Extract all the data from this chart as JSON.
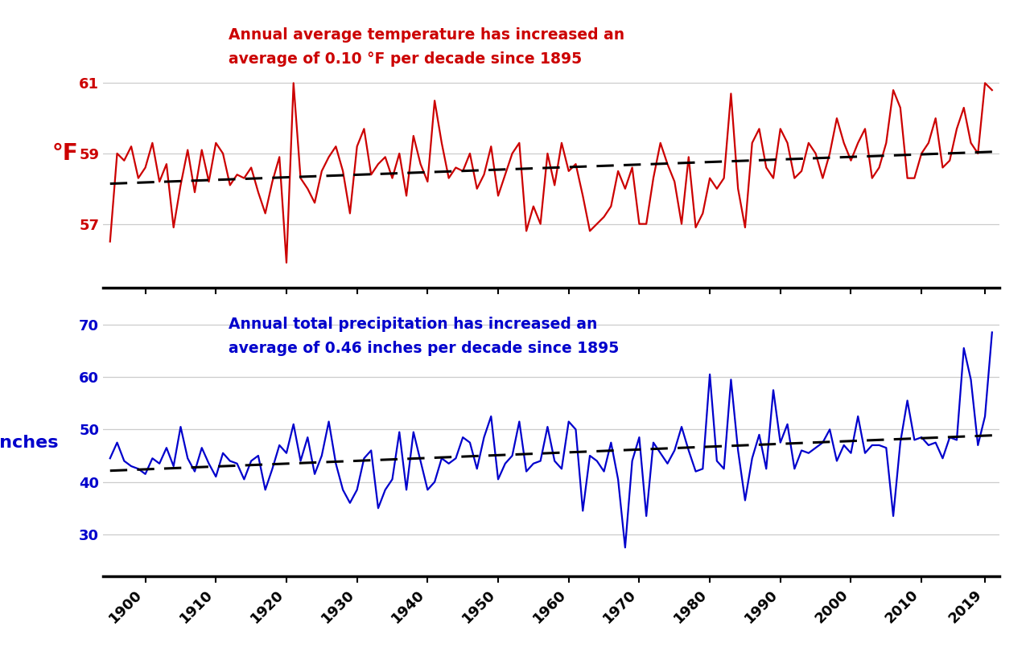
{
  "years": [
    1895,
    1896,
    1897,
    1898,
    1899,
    1900,
    1901,
    1902,
    1903,
    1904,
    1905,
    1906,
    1907,
    1908,
    1909,
    1910,
    1911,
    1912,
    1913,
    1914,
    1915,
    1916,
    1917,
    1918,
    1919,
    1920,
    1921,
    1922,
    1923,
    1924,
    1925,
    1926,
    1927,
    1928,
    1929,
    1930,
    1931,
    1932,
    1933,
    1934,
    1935,
    1936,
    1937,
    1938,
    1939,
    1940,
    1941,
    1942,
    1943,
    1944,
    1945,
    1946,
    1947,
    1948,
    1949,
    1950,
    1951,
    1952,
    1953,
    1954,
    1955,
    1956,
    1957,
    1958,
    1959,
    1960,
    1961,
    1962,
    1963,
    1964,
    1965,
    1966,
    1967,
    1968,
    1969,
    1970,
    1971,
    1972,
    1973,
    1974,
    1975,
    1976,
    1977,
    1978,
    1979,
    1980,
    1981,
    1982,
    1983,
    1984,
    1985,
    1986,
    1987,
    1988,
    1989,
    1990,
    1991,
    1992,
    1993,
    1994,
    1995,
    1996,
    1997,
    1998,
    1999,
    2000,
    2001,
    2002,
    2003,
    2004,
    2005,
    2006,
    2007,
    2008,
    2009,
    2010,
    2011,
    2012,
    2013,
    2014,
    2015,
    2016,
    2017,
    2018,
    2019,
    2020
  ],
  "temp": [
    56.5,
    59.0,
    58.8,
    59.2,
    58.3,
    58.6,
    59.3,
    58.2,
    58.7,
    56.9,
    58.1,
    59.1,
    57.9,
    59.1,
    58.2,
    59.3,
    59.0,
    58.1,
    58.4,
    58.3,
    58.6,
    57.9,
    57.3,
    58.2,
    58.9,
    55.9,
    61.0,
    58.3,
    58.0,
    57.6,
    58.5,
    58.9,
    59.2,
    58.5,
    57.3,
    59.2,
    59.7,
    58.4,
    58.7,
    58.9,
    58.3,
    59.0,
    57.8,
    59.5,
    58.7,
    58.2,
    60.5,
    59.3,
    58.3,
    58.6,
    58.5,
    59.0,
    58.0,
    58.4,
    59.2,
    57.8,
    58.4,
    59.0,
    59.3,
    56.8,
    57.5,
    57.0,
    59.0,
    58.1,
    59.3,
    58.5,
    58.7,
    57.8,
    56.8,
    57.0,
    57.2,
    57.5,
    58.5,
    58.0,
    58.6,
    57.0,
    57.0,
    58.3,
    59.3,
    58.7,
    58.2,
    57.0,
    58.9,
    56.9,
    57.3,
    58.3,
    58.0,
    58.3,
    60.7,
    58.0,
    56.9,
    59.3,
    59.7,
    58.6,
    58.3,
    59.7,
    59.3,
    58.3,
    58.5,
    59.3,
    59.0,
    58.3,
    59.0,
    60.0,
    59.3,
    58.8,
    59.3,
    59.7,
    58.3,
    58.6,
    59.3,
    60.8,
    60.3,
    58.3,
    58.3,
    59.0,
    59.3,
    60.0,
    58.6,
    58.8,
    59.7,
    60.3,
    59.3,
    59.0,
    61.0,
    60.8
  ],
  "precip": [
    44.5,
    47.5,
    44.0,
    43.0,
    42.5,
    41.5,
    44.5,
    43.5,
    46.5,
    43.0,
    50.5,
    44.5,
    42.0,
    46.5,
    43.5,
    41.0,
    45.5,
    44.0,
    43.5,
    40.5,
    44.0,
    45.0,
    38.5,
    42.5,
    47.0,
    45.5,
    51.0,
    44.0,
    48.5,
    41.5,
    45.0,
    51.5,
    43.5,
    38.5,
    36.0,
    38.5,
    44.5,
    46.0,
    35.0,
    38.5,
    40.5,
    49.5,
    38.5,
    49.5,
    44.0,
    38.5,
    40.0,
    44.5,
    43.5,
    44.5,
    48.5,
    47.5,
    42.5,
    48.5,
    52.5,
    40.5,
    43.5,
    45.0,
    51.5,
    42.0,
    43.5,
    44.0,
    50.5,
    44.0,
    42.5,
    51.5,
    50.0,
    34.5,
    45.0,
    44.0,
    42.0,
    47.5,
    40.5,
    27.5,
    44.0,
    48.5,
    33.5,
    47.5,
    45.5,
    43.5,
    46.0,
    50.5,
    46.0,
    42.0,
    42.5,
    60.5,
    44.0,
    42.5,
    59.5,
    46.0,
    36.5,
    44.5,
    49.0,
    42.5,
    57.5,
    47.5,
    51.0,
    42.5,
    46.0,
    45.5,
    46.5,
    47.5,
    50.0,
    44.0,
    47.0,
    45.5,
    52.5,
    45.5,
    47.0,
    47.0,
    46.5,
    33.5,
    47.5,
    55.5,
    48.0,
    48.5,
    47.0,
    47.5,
    44.5,
    48.5,
    48.0,
    65.5,
    59.5,
    47.0,
    52.5,
    68.5
  ],
  "temp_color": "#cc0000",
  "precip_color": "#0000cc",
  "trend_color": "#000000",
  "temp_ylabel": "°F",
  "precip_ylabel": "Inches",
  "temp_annotation": "Annual average temperature has increased an\naverage of 0.10 °F per decade since 1895",
  "precip_annotation": "Annual total precipitation has increased an\naverage of 0.46 inches per decade since 1895",
  "temp_yticks": [
    57,
    59,
    61
  ],
  "precip_yticks": [
    30,
    40,
    50,
    60,
    70
  ],
  "temp_ylim": [
    55.2,
    62.8
  ],
  "precip_ylim": [
    22,
    73
  ],
  "xticks": [
    1900,
    1910,
    1920,
    1930,
    1940,
    1950,
    1960,
    1970,
    1980,
    1990,
    2000,
    2010,
    2019
  ],
  "grid_color": "#cccccc",
  "background_color": "#ffffff",
  "annotation_fontsize": 13.5,
  "temp_ylabel_fontsize": 20,
  "precip_ylabel_fontsize": 16,
  "tick_fontsize": 13,
  "line_width": 1.6,
  "trend_linewidth": 2.2
}
